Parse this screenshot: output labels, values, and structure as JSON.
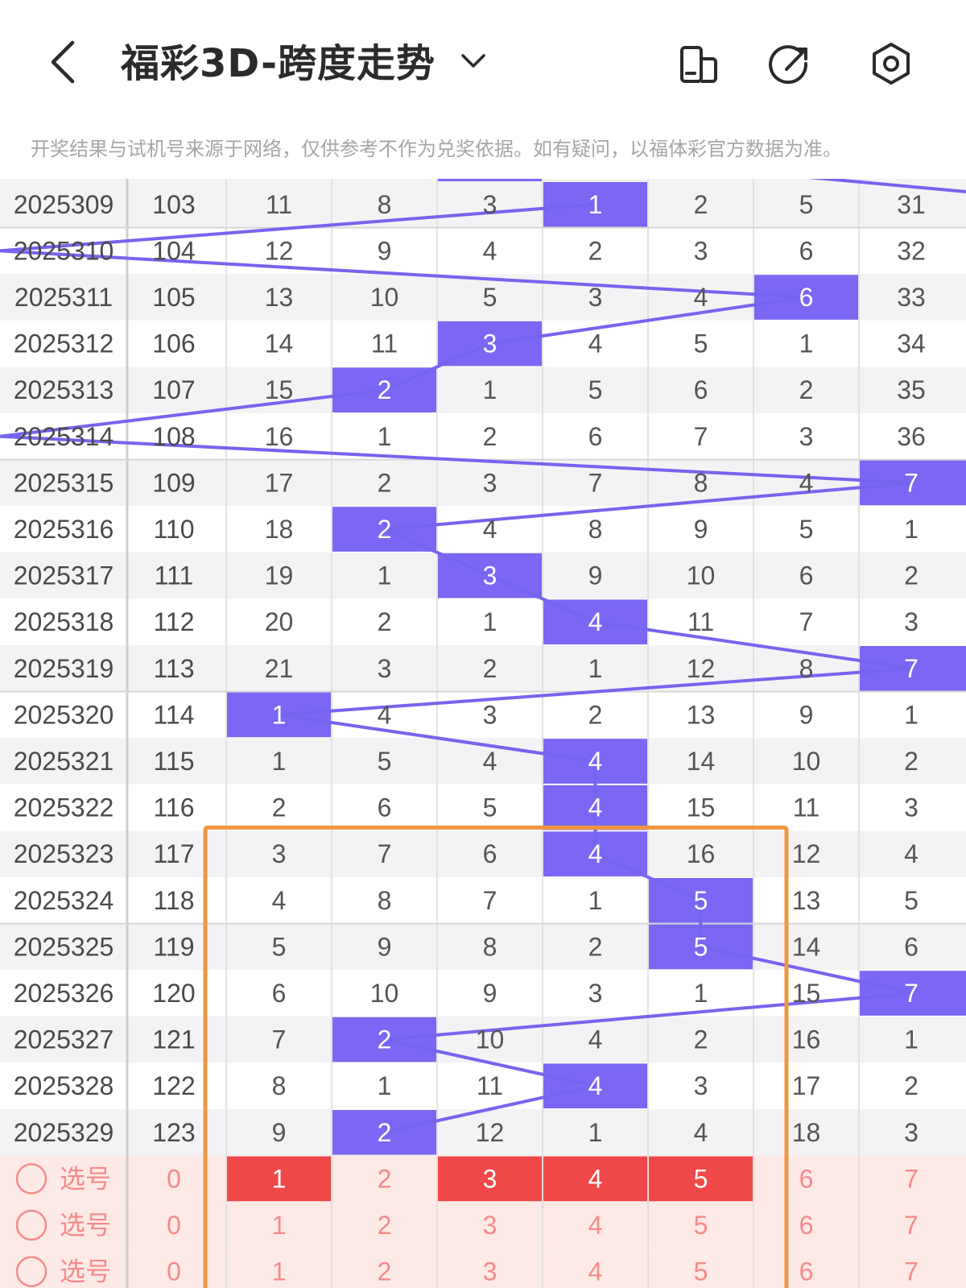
{
  "header": {
    "back_icon": "chevron-left-icon",
    "title": "福彩3D-跨度走势",
    "dropdown_icon": "chevron-down-icon",
    "actions": [
      {
        "name": "layout-toggle-icon"
      },
      {
        "name": "share-icon"
      },
      {
        "name": "settings-icon"
      }
    ]
  },
  "notice": "开奖结果与试机号来源于网络，仅供参考不作为兑奖依据。如有疑问，以福体彩官方数据为准。",
  "colors": {
    "hit": "#7b67f3",
    "hit_line": "#7664ee",
    "selected": "#f04848",
    "select_row_bg": "#fde9e6",
    "select_text": "#f48b8b",
    "highlight_box": "#ef9640",
    "row_alt": "#f3f3f5"
  },
  "table": {
    "rows": [
      {
        "issue": "2025309",
        "seq": "103",
        "cells": [
          "11",
          "8",
          "3",
          "1",
          "2",
          "5",
          "31"
        ],
        "hit": 3
      },
      {
        "issue": "2025310",
        "seq": "104",
        "cells": [
          "12",
          "9",
          "4",
          "2",
          "3",
          "6",
          "32"
        ],
        "hit": 7
      },
      {
        "issue": "2025311",
        "seq": "105",
        "cells": [
          "13",
          "10",
          "5",
          "3",
          "4",
          "6",
          "33"
        ],
        "hit": 5
      },
      {
        "issue": "2025312",
        "seq": "106",
        "cells": [
          "14",
          "11",
          "3",
          "4",
          "5",
          "1",
          "34"
        ],
        "hit": 2
      },
      {
        "issue": "2025313",
        "seq": "107",
        "cells": [
          "15",
          "2",
          "1",
          "5",
          "6",
          "2",
          "35"
        ],
        "hit": 1
      },
      {
        "issue": "2025314",
        "seq": "108",
        "cells": [
          "16",
          "1",
          "2",
          "6",
          "7",
          "3",
          "36"
        ],
        "hit": 8
      },
      {
        "issue": "2025315",
        "seq": "109",
        "cells": [
          "17",
          "2",
          "3",
          "7",
          "8",
          "4",
          "7"
        ],
        "hit": 6
      },
      {
        "issue": "2025316",
        "seq": "110",
        "cells": [
          "18",
          "2",
          "4",
          "8",
          "9",
          "5",
          "1"
        ],
        "hit": 1
      },
      {
        "issue": "2025317",
        "seq": "111",
        "cells": [
          "19",
          "1",
          "3",
          "9",
          "10",
          "6",
          "2"
        ],
        "hit": 2
      },
      {
        "issue": "2025318",
        "seq": "112",
        "cells": [
          "20",
          "2",
          "1",
          "4",
          "11",
          "7",
          "3"
        ],
        "hit": 3
      },
      {
        "issue": "2025319",
        "seq": "113",
        "cells": [
          "21",
          "3",
          "2",
          "1",
          "12",
          "8",
          "7"
        ],
        "hit": 6
      },
      {
        "issue": "2025320",
        "seq": "114",
        "cells": [
          "1",
          "4",
          "3",
          "2",
          "13",
          "9",
          "1"
        ],
        "hit": 0
      },
      {
        "issue": "2025321",
        "seq": "115",
        "cells": [
          "1",
          "5",
          "4",
          "4",
          "14",
          "10",
          "2"
        ],
        "hit": 3
      },
      {
        "issue": "2025322",
        "seq": "116",
        "cells": [
          "2",
          "6",
          "5",
          "4",
          "15",
          "11",
          "3"
        ],
        "hit": 3
      },
      {
        "issue": "2025323",
        "seq": "117",
        "cells": [
          "3",
          "7",
          "6",
          "4",
          "16",
          "12",
          "4"
        ],
        "hit": 3
      },
      {
        "issue": "2025324",
        "seq": "118",
        "cells": [
          "4",
          "8",
          "7",
          "1",
          "5",
          "13",
          "5"
        ],
        "hit": 4
      },
      {
        "issue": "2025325",
        "seq": "119",
        "cells": [
          "5",
          "9",
          "8",
          "2",
          "5",
          "14",
          "6"
        ],
        "hit": 4
      },
      {
        "issue": "2025326",
        "seq": "120",
        "cells": [
          "6",
          "10",
          "9",
          "3",
          "1",
          "15",
          "7"
        ],
        "hit": 6
      },
      {
        "issue": "2025327",
        "seq": "121",
        "cells": [
          "7",
          "2",
          "10",
          "4",
          "2",
          "16",
          "1"
        ],
        "hit": 1
      },
      {
        "issue": "2025328",
        "seq": "122",
        "cells": [
          "8",
          "1",
          "11",
          "4",
          "3",
          "17",
          "2"
        ],
        "hit": 3
      },
      {
        "issue": "2025329",
        "seq": "123",
        "cells": [
          "9",
          "2",
          "12",
          "1",
          "4",
          "18",
          "3"
        ],
        "hit": 1
      }
    ],
    "select_rows": [
      {
        "label": "选号",
        "count": "0",
        "cells": [
          "1",
          "2",
          "3",
          "4",
          "5",
          "6",
          "7"
        ],
        "selected": [
          0,
          2,
          3,
          4
        ]
      },
      {
        "label": "选号",
        "count": "0",
        "cells": [
          "1",
          "2",
          "3",
          "4",
          "5",
          "6",
          "7"
        ],
        "selected": []
      },
      {
        "label": "选号",
        "count": "0",
        "cells": [
          "1",
          "2",
          "3",
          "4",
          "5",
          "6",
          "7"
        ],
        "selected": []
      }
    ]
  }
}
